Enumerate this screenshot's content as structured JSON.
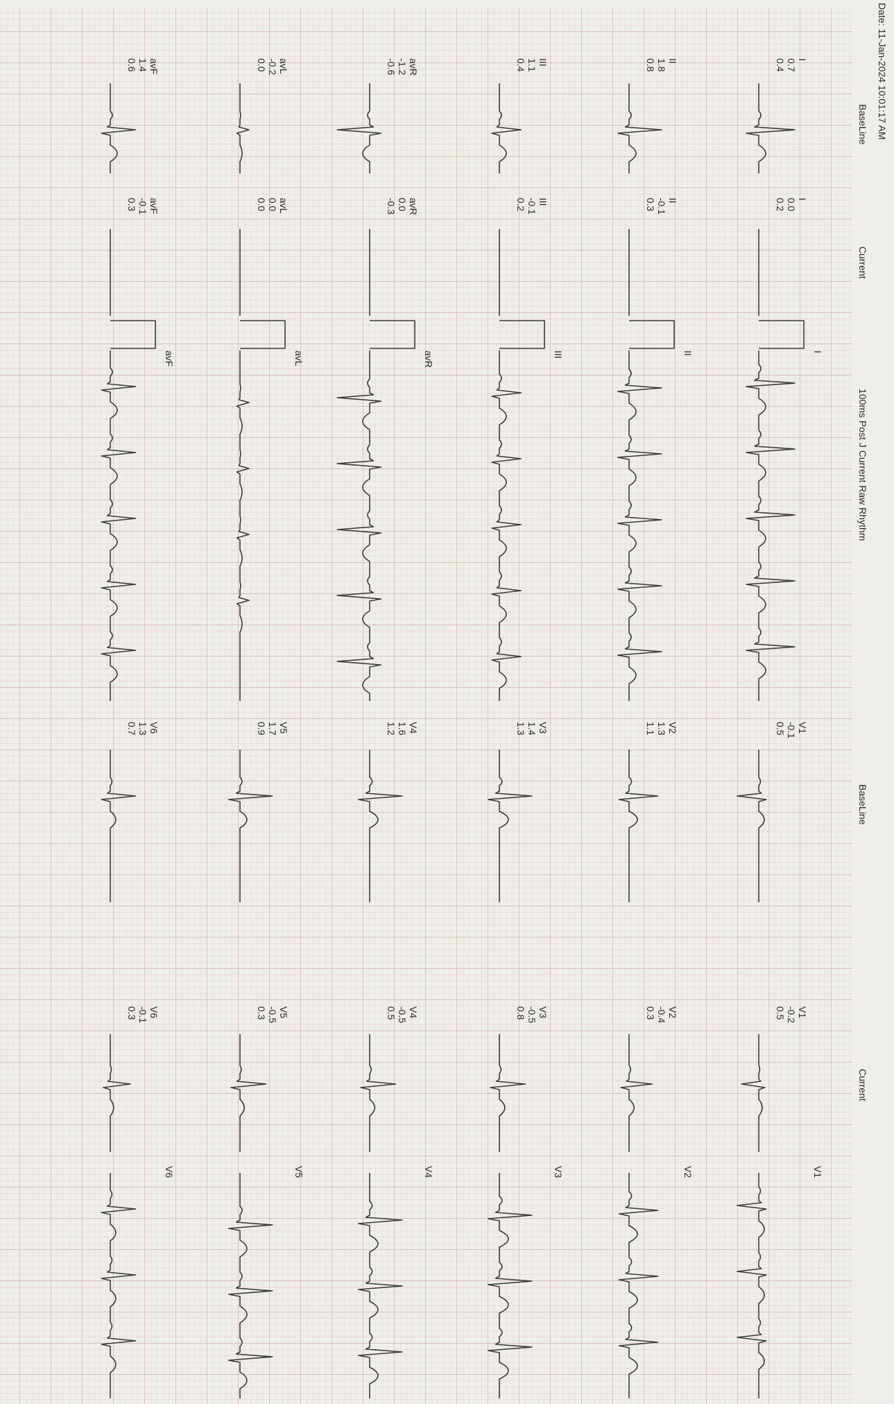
{
  "header": {
    "date": "Date: 11-Jan-2024 10:01:17 AM",
    "left_baseline": "BaseLine",
    "left_current": "Current",
    "rhythm": "100ms Post J  Current Raw Rhythm",
    "right_baseline": "BaseLine",
    "right_current": "Current"
  },
  "limb_leads": [
    {
      "lead": "I",
      "baseline": [
        "0.7",
        "0.4"
      ],
      "current": [
        "0.0",
        "0.2"
      ]
    },
    {
      "lead": "II",
      "baseline": [
        "1.8",
        "0.8"
      ],
      "current": [
        "-0.1",
        "0.3"
      ]
    },
    {
      "lead": "III",
      "baseline": [
        "1.1",
        "0.4"
      ],
      "current": [
        "-0.1",
        "0.2"
      ]
    },
    {
      "lead": "avR",
      "baseline": [
        "-1.2",
        "-0.6"
      ],
      "current": [
        "0.0",
        "-0.3"
      ]
    },
    {
      "lead": "avL",
      "baseline": [
        "-0.2",
        "0.0"
      ],
      "current": [
        "0.0",
        "0.0"
      ]
    },
    {
      "lead": "avF",
      "baseline": [
        "1.4",
        "0.6"
      ],
      "current": [
        "-0.1",
        "0.3"
      ]
    }
  ],
  "chest_leads": [
    {
      "lead": "V1",
      "baseline": [
        "-0.1",
        "0.5"
      ],
      "current": [
        "-0.2",
        "0.5"
      ]
    },
    {
      "lead": "V2",
      "baseline": [
        "1.3",
        "1.1"
      ],
      "current": [
        "-0.4",
        "0.3"
      ]
    },
    {
      "lead": "V3",
      "baseline": [
        "1.4",
        "1.3"
      ],
      "current": [
        "-0.5",
        "0.8"
      ]
    },
    {
      "lead": "V4",
      "baseline": [
        "1.6",
        "1.2"
      ],
      "current": [
        "-0.5",
        "0.5"
      ]
    },
    {
      "lead": "V5",
      "baseline": [
        "1.7",
        "0.9"
      ],
      "current": [
        "-0.5",
        "0.3"
      ]
    },
    {
      "lead": "V6",
      "baseline": [
        "1.3",
        "0.7"
      ],
      "current": [
        "-0.1",
        "0.3"
      ]
    }
  ]
}
